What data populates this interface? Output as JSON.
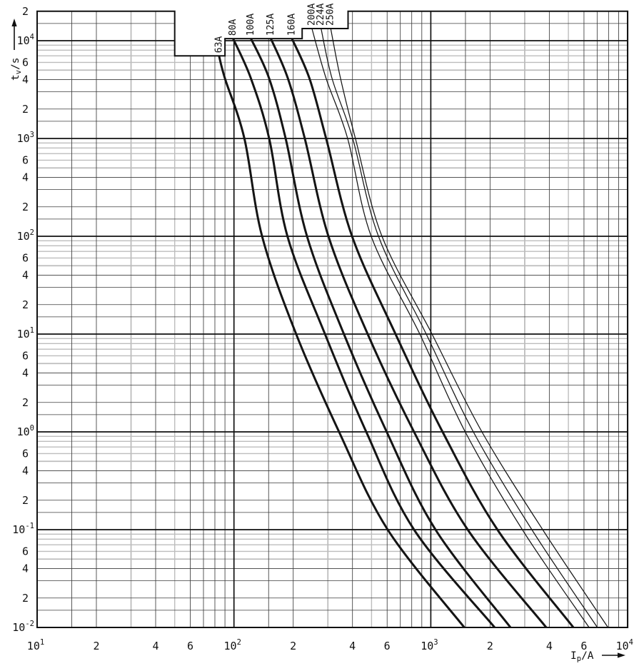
{
  "chart_data": {
    "type": "line",
    "title": "",
    "xlabel": "Ip/A",
    "ylabel": "tv/s",
    "x_axis": {
      "label_main": "I",
      "label_sub": "p",
      "label_unit": "/A",
      "min": 10,
      "max": 10000,
      "ticks": [
        {
          "v": 10,
          "e": "1"
        },
        {
          "v": 20,
          "l": "2"
        },
        {
          "v": 40,
          "l": "4"
        },
        {
          "v": 60,
          "l": "6"
        },
        {
          "v": 100,
          "e": "2"
        },
        {
          "v": 200,
          "l": "2"
        },
        {
          "v": 400,
          "l": "4"
        },
        {
          "v": 600,
          "l": "6"
        },
        {
          "v": 1000,
          "e": "3"
        },
        {
          "v": 2000,
          "l": "2"
        },
        {
          "v": 4000,
          "l": "4"
        },
        {
          "v": 6000,
          "l": "6"
        },
        {
          "v": 10000,
          "e": "4"
        }
      ]
    },
    "y_axis": {
      "label_main": "t",
      "label_sub": "v",
      "label_unit": "/s",
      "min": 0.01,
      "max": 20000,
      "ticks": [
        {
          "v": 20000,
          "l": "2"
        },
        {
          "v": 10000,
          "e": "4"
        },
        {
          "v": 6000,
          "l": "6"
        },
        {
          "v": 4000,
          "l": "4"
        },
        {
          "v": 2000,
          "l": "2"
        },
        {
          "v": 1000,
          "e": "3"
        },
        {
          "v": 600,
          "l": "6"
        },
        {
          "v": 400,
          "l": "4"
        },
        {
          "v": 200,
          "l": "2"
        },
        {
          "v": 100,
          "e": "2"
        },
        {
          "v": 60,
          "l": "6"
        },
        {
          "v": 40,
          "l": "4"
        },
        {
          "v": 20,
          "l": "2"
        },
        {
          "v": 10,
          "e": "1"
        },
        {
          "v": 6,
          "l": "6"
        },
        {
          "v": 4,
          "l": "4"
        },
        {
          "v": 2,
          "l": "2"
        },
        {
          "v": 1,
          "e": "0"
        },
        {
          "v": 0.6,
          "l": "6"
        },
        {
          "v": 0.4,
          "l": "4"
        },
        {
          "v": 0.2,
          "l": "2"
        },
        {
          "v": 0.1,
          "e": "-1"
        },
        {
          "v": 0.06,
          "l": "6"
        },
        {
          "v": 0.04,
          "l": "4"
        },
        {
          "v": 0.02,
          "l": "2"
        },
        {
          "v": 0.01,
          "e": "-2"
        }
      ]
    },
    "grid": {
      "minor_multipliers": [
        1.5,
        2,
        3,
        4,
        5,
        6,
        7,
        8,
        9
      ],
      "x_decades": [
        10,
        100,
        1000,
        10000
      ],
      "y_decades": [
        0.01,
        0.1,
        1,
        10,
        100,
        1000,
        10000
      ],
      "colors": {
        "major": "#111111",
        "minor_dark": "#3c3c3c",
        "minor_gray": "#bdbdbd",
        "curve": "#141414"
      }
    },
    "boundary": [
      [
        10,
        20000
      ],
      [
        50,
        20000
      ],
      [
        50,
        7000
      ],
      [
        90,
        7000
      ],
      [
        90,
        10500
      ],
      [
        222,
        10500
      ],
      [
        222,
        13300
      ],
      [
        380,
        13300
      ],
      [
        380,
        20000
      ],
      [
        10000,
        20000
      ]
    ],
    "series": [
      {
        "name": "63A",
        "weight": "thick",
        "points": [
          [
            84,
            7000
          ],
          [
            90,
            4100
          ],
          [
            113,
            1000
          ],
          [
            139,
            100
          ],
          [
            207,
            10
          ],
          [
            342,
            1
          ],
          [
            604,
            0.1
          ],
          [
            1480,
            0.01
          ]
        ]
      },
      {
        "name": "80A",
        "weight": "thick",
        "points": [
          [
            99,
            10500
          ],
          [
            122,
            4100
          ],
          [
            151,
            1000
          ],
          [
            187,
            100
          ],
          [
            290,
            10
          ],
          [
            470,
            1
          ],
          [
            822,
            0.1
          ],
          [
            2110,
            0.01
          ]
        ]
      },
      {
        "name": "100A",
        "weight": "thick",
        "points": [
          [
            122,
            10500
          ],
          [
            151,
            4100
          ],
          [
            183,
            1000
          ],
          [
            235,
            100
          ],
          [
            362,
            10
          ],
          [
            597,
            1
          ],
          [
            1057,
            0.1
          ],
          [
            2540,
            0.01
          ]
        ]
      },
      {
        "name": "125A",
        "weight": "thick",
        "points": [
          [
            154,
            10500
          ],
          [
            188,
            4100
          ],
          [
            229,
            1000
          ],
          [
            302,
            100
          ],
          [
            478,
            10
          ],
          [
            822,
            1
          ],
          [
            1540,
            0.1
          ],
          [
            3860,
            0.01
          ]
        ]
      },
      {
        "name": "160A",
        "weight": "thick",
        "points": [
          [
            197,
            10500
          ],
          [
            242,
            4100
          ],
          [
            294,
            1000
          ],
          [
            398,
            100
          ],
          [
            662,
            10
          ],
          [
            1148,
            1
          ],
          [
            2180,
            0.1
          ],
          [
            5300,
            0.01
          ]
        ]
      },
      {
        "name": "200A",
        "weight": "thin",
        "points": [
          [
            249,
            13300
          ],
          [
            294,
            4100
          ],
          [
            378,
            1000
          ],
          [
            498,
            100
          ],
          [
            879,
            10
          ],
          [
            1496,
            1
          ],
          [
            2917,
            0.1
          ],
          [
            6370,
            0.01
          ]
        ]
      },
      {
        "name": "224A",
        "weight": "thin",
        "points": [
          [
            277,
            13300
          ],
          [
            315,
            4100
          ],
          [
            401,
            1000
          ],
          [
            542,
            100
          ],
          [
            948,
            10
          ],
          [
            1645,
            1
          ],
          [
            3260,
            0.1
          ],
          [
            7020,
            0.01
          ]
        ]
      },
      {
        "name": "250A",
        "weight": "thin",
        "points": [
          [
            310,
            13300
          ],
          [
            348,
            4100
          ],
          [
            414,
            1000
          ],
          [
            565,
            100
          ],
          [
            1014,
            10
          ],
          [
            1819,
            1
          ],
          [
            3700,
            0.1
          ],
          [
            7950,
            0.01
          ]
        ]
      }
    ]
  }
}
